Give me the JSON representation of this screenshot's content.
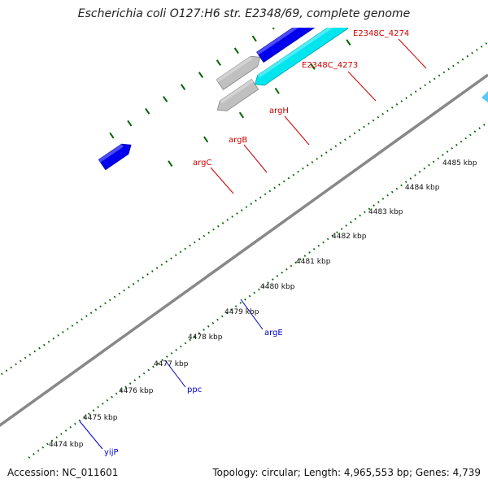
{
  "title": "Escherichia coli O127:H6 str. E2348/69, complete genome",
  "footer": {
    "accession": "Accession: NC_011601",
    "stats": "Topology: circular; Length: 4,965,553 bp; Genes: 4,739"
  },
  "kbp_labels": [
    "4474 kbp",
    "4475 kbp",
    "4476 kbp",
    "4477 kbp",
    "4478 kbp",
    "4479 kbp",
    "4480 kbp",
    "4481 kbp",
    "4482 kbp",
    "4483 kbp",
    "4484 kbp",
    "4485 kbp"
  ],
  "gene_labels": {
    "argC": "argC",
    "argB": "argB",
    "argH": "argH",
    "e4273": "E2348C_4273",
    "e4274": "E2348C_4274",
    "argE": "argE",
    "ppc": "ppc",
    "yijP": "yijP"
  },
  "colors": {
    "red": "#ff0000",
    "steelblue": "#4682b4",
    "blue": "#0000ee",
    "cyan": "#00e5ee",
    "gray": "#c0c0c0",
    "olive": "#6b8e23",
    "backbone": "#888888",
    "tick_green": "#006400",
    "label_red": "#cc0000",
    "label_blue": "#0000cc"
  }
}
